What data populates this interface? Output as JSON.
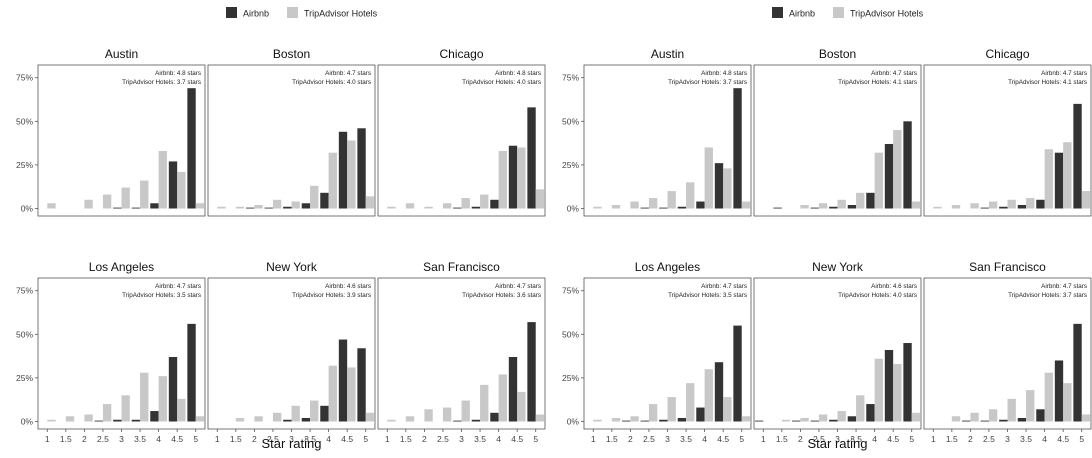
{
  "colors": {
    "airbnb": "#333333",
    "tripadvisor": "#c8c8c8",
    "axis": "#555555",
    "tick_text": "#444444"
  },
  "chart_data": [
    {
      "type": "bar",
      "legend": [
        "Airbnb",
        "TripAdvisor Hotels"
      ],
      "legend_position": "top",
      "xlabel": "Star rating",
      "ylabel": "",
      "x": [
        "1",
        "1.5",
        "2",
        "2.5",
        "3",
        "3.5",
        "4",
        "4.5",
        "5"
      ],
      "y_ticks": [
        "0%",
        "25%",
        "50%",
        "75%"
      ],
      "ylim": [
        0,
        80
      ],
      "grid": false,
      "panels": [
        {
          "city": "Austin",
          "note_airbnb": "Airbnb: 4.8 stars",
          "note_ta": "TripAdvisor Hotels: 3.7 stars",
          "series": [
            {
              "name": "Airbnb",
              "values": [
                0,
                0,
                0,
                0,
                0.5,
                0.5,
                3,
                27,
                69
              ]
            },
            {
              "name": "TripAdvisor Hotels",
              "values": [
                3,
                0,
                5,
                8,
                12,
                16,
                33,
                21,
                3
              ]
            }
          ]
        },
        {
          "city": "Boston",
          "note_airbnb": "Airbnb: 4.7 stars",
          "note_ta": "TripAdvisor Hotels: 4.0 stars",
          "series": [
            {
              "name": "Airbnb",
              "values": [
                0,
                0,
                0.5,
                0.5,
                1,
                3,
                9,
                44,
                46
              ]
            },
            {
              "name": "TripAdvisor Hotels",
              "values": [
                1,
                1,
                2,
                5,
                4,
                13,
                32,
                39,
                7
              ]
            }
          ]
        },
        {
          "city": "Chicago",
          "note_airbnb": "Airbnb: 4.8 stars",
          "note_ta": "TripAdvisor Hotels: 4.0 stars",
          "series": [
            {
              "name": "Airbnb",
              "values": [
                0,
                0,
                0,
                0,
                0.5,
                1,
                5,
                36,
                58
              ]
            },
            {
              "name": "TripAdvisor Hotels",
              "values": [
                1,
                3,
                1,
                3,
                6,
                8,
                33,
                35,
                11
              ]
            }
          ]
        },
        {
          "city": "Los Angeles",
          "note_airbnb": "Airbnb: 4.7 stars",
          "note_ta": "TripAdvisor Hotels: 3.5 stars",
          "series": [
            {
              "name": "Airbnb",
              "values": [
                0,
                0,
                0,
                0.5,
                1,
                1,
                6,
                37,
                56
              ]
            },
            {
              "name": "TripAdvisor Hotels",
              "values": [
                1,
                3,
                4,
                10,
                15,
                28,
                26,
                13,
                3
              ]
            }
          ]
        },
        {
          "city": "New York",
          "note_airbnb": "Airbnb: 4.6 stars",
          "note_ta": "TripAdvisor Hotels: 3.9 stars",
          "series": [
            {
              "name": "Airbnb",
              "values": [
                0,
                0,
                0,
                0,
                1,
                2,
                9,
                47,
                42
              ]
            },
            {
              "name": "TripAdvisor Hotels",
              "values": [
                0,
                2,
                3,
                5,
                9,
                12,
                32,
                31,
                5
              ]
            }
          ]
        },
        {
          "city": "San Francisco",
          "note_airbnb": "Airbnb: 4.7 stars",
          "note_ta": "TripAdvisor Hotels: 3.6 stars",
          "series": [
            {
              "name": "Airbnb",
              "values": [
                0,
                0,
                0,
                0,
                0.5,
                1,
                5,
                37,
                57
              ]
            },
            {
              "name": "TripAdvisor Hotels",
              "values": [
                1,
                3,
                7,
                8,
                12,
                21,
                27,
                17,
                4
              ]
            }
          ]
        }
      ]
    },
    {
      "type": "bar",
      "legend": [
        "Airbnb",
        "TripAdvisor Hotels"
      ],
      "legend_position": "top",
      "xlabel": "Star rating",
      "ylabel": "",
      "x": [
        "1",
        "1.5",
        "2",
        "2.5",
        "3",
        "3.5",
        "4",
        "4.5",
        "5"
      ],
      "y_ticks": [
        "0%",
        "25%",
        "50%",
        "75%"
      ],
      "ylim": [
        0,
        80
      ],
      "grid": false,
      "panels": [
        {
          "city": "Austin",
          "note_airbnb": "Airbnb: 4.8 stars",
          "note_ta": "TripAdvisor Hotels: 3.7 stars",
          "series": [
            {
              "name": "Airbnb",
              "values": [
                0,
                0,
                0,
                0.5,
                0.5,
                1,
                4,
                26,
                69
              ]
            },
            {
              "name": "TripAdvisor Hotels",
              "values": [
                1,
                2,
                4,
                6,
                10,
                15,
                35,
                23,
                4
              ]
            }
          ]
        },
        {
          "city": "Boston",
          "note_airbnb": "Airbnb: 4.7 stars",
          "note_ta": "TripAdvisor Hotels: 4.1 stars",
          "series": [
            {
              "name": "Airbnb",
              "values": [
                0,
                0.5,
                0,
                0.5,
                1,
                2,
                9,
                37,
                50
              ]
            },
            {
              "name": "TripAdvisor Hotels",
              "values": [
                0,
                0,
                2,
                3,
                5,
                9,
                32,
                45,
                4
              ]
            }
          ]
        },
        {
          "city": "Chicago",
          "note_airbnb": "Airbnb: 4.7 stars",
          "note_ta": "TripAdvisor Hotels: 4.1 stars",
          "series": [
            {
              "name": "Airbnb",
              "values": [
                0,
                0,
                0,
                0.5,
                1,
                2,
                5,
                32,
                60
              ]
            },
            {
              "name": "TripAdvisor Hotels",
              "values": [
                1,
                2,
                3,
                4,
                5,
                6,
                34,
                38,
                10
              ]
            }
          ]
        },
        {
          "city": "Los Angeles",
          "note_airbnb": "Airbnb: 4.7 stars",
          "note_ta": "TripAdvisor Hotels: 3.5 stars",
          "series": [
            {
              "name": "Airbnb",
              "values": [
                0,
                0,
                0.5,
                0.5,
                1,
                2,
                8,
                34,
                55
              ]
            },
            {
              "name": "TripAdvisor Hotels",
              "values": [
                1,
                2,
                3,
                10,
                14,
                22,
                30,
                14,
                3
              ]
            }
          ]
        },
        {
          "city": "New York",
          "note_airbnb": "Airbnb: 4.6 stars",
          "note_ta": "TripAdvisor Hotels: 4.0 stars",
          "series": [
            {
              "name": "Airbnb",
              "values": [
                0.5,
                0,
                0.5,
                0.5,
                1,
                3,
                10,
                41,
                45
              ]
            },
            {
              "name": "TripAdvisor Hotels",
              "values": [
                0,
                1,
                2,
                4,
                6,
                15,
                36,
                33,
                5
              ]
            }
          ]
        },
        {
          "city": "San Francisco",
          "note_airbnb": "Airbnb: 4.7 stars",
          "note_ta": "TripAdvisor Hotels: 3.7 stars",
          "series": [
            {
              "name": "Airbnb",
              "values": [
                0,
                0,
                0.5,
                0.5,
                1,
                2,
                7,
                35,
                56
              ]
            },
            {
              "name": "TripAdvisor Hotels",
              "values": [
                0,
                3,
                5,
                7,
                13,
                18,
                28,
                22,
                4
              ]
            }
          ]
        }
      ]
    }
  ]
}
